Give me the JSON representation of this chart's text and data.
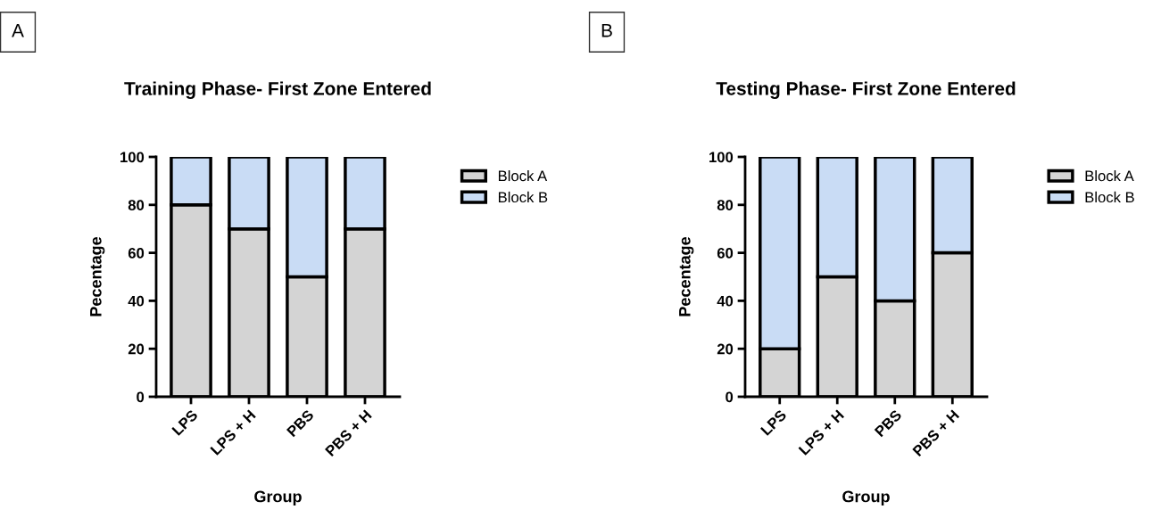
{
  "chart_data": [
    {
      "type": "bar",
      "stacked": true,
      "title": "Training Phase- First Zone Entered",
      "xlabel": "Group",
      "ylabel": "Pecentage",
      "annotations": [
        "A"
      ],
      "categories": [
        "LPS",
        "LPS + H",
        "PBS",
        "PBS + H"
      ],
      "series": [
        {
          "name": "Block A",
          "color": "#d4d4d4",
          "values": [
            80,
            70,
            50,
            70
          ]
        },
        {
          "name": "Block B",
          "color": "#c9dcf5",
          "values": [
            20,
            30,
            50,
            30
          ]
        }
      ],
      "ylim": [
        0,
        100
      ],
      "yticks": [
        0,
        20,
        40,
        60,
        80,
        100
      ],
      "grid": false,
      "legend": "top right"
    },
    {
      "type": "bar",
      "stacked": true,
      "title": "Testing Phase- First Zone Entered",
      "xlabel": "Group",
      "ylabel": "Pecentage",
      "annotations": [
        "B"
      ],
      "categories": [
        "LPS",
        "LPS + H",
        "PBS",
        "PBS + H"
      ],
      "series": [
        {
          "name": "Block A",
          "color": "#d4d4d4",
          "values": [
            20,
            50,
            40,
            60
          ]
        },
        {
          "name": "Block B",
          "color": "#c9dcf5",
          "values": [
            80,
            50,
            60,
            40
          ]
        }
      ],
      "ylim": [
        0,
        100
      ],
      "yticks": [
        0,
        20,
        40,
        60,
        80,
        100
      ],
      "grid": false,
      "legend": "top right"
    }
  ]
}
